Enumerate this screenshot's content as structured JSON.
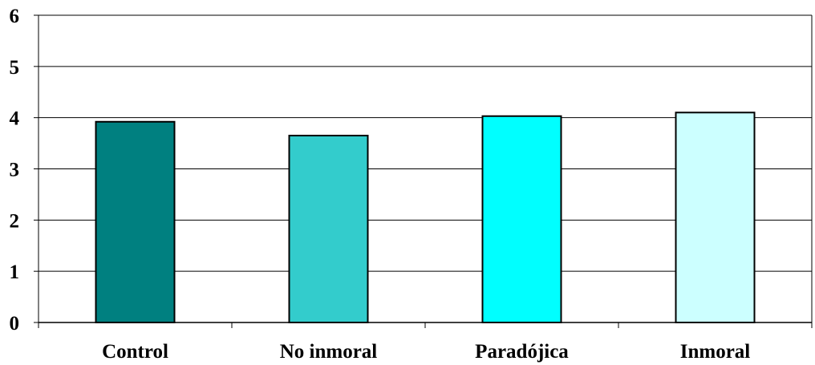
{
  "chart_data": {
    "type": "bar",
    "title": "",
    "xlabel": "",
    "ylabel": "",
    "categories": [
      "Control",
      "No inmoral",
      "Paradójica",
      "Inmoral"
    ],
    "values": [
      3.92,
      3.65,
      4.03,
      4.1
    ],
    "ylim": [
      0,
      6
    ],
    "yticks": [
      "0",
      "1",
      "2",
      "3",
      "4",
      "5",
      "6"
    ],
    "grid": true,
    "legend": "none",
    "bar_colors": [
      "#008080",
      "#33CCCC",
      "#00FFFF",
      "#CCFFFF"
    ],
    "bar_outline": "#000000"
  }
}
